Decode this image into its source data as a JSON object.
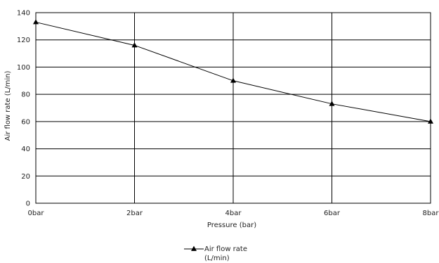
{
  "chart_data": {
    "type": "line",
    "title": "",
    "xlabel": "Pressure (bar)",
    "ylabel": "Air flow rate (L/min)",
    "categories": [
      "0bar",
      "2bar",
      "4bar",
      "6bar",
      "8bar"
    ],
    "ylim": [
      0,
      140
    ],
    "yticks": [
      0,
      20,
      40,
      60,
      80,
      100,
      120,
      140
    ],
    "grid": true,
    "legend_position": "bottom-center",
    "series": [
      {
        "name": "Air flow rate (L/min)",
        "legend_lines": [
          "Air flow rate",
          "(L/min)"
        ],
        "marker": "triangle",
        "color": "#000000",
        "values": [
          133,
          116,
          90,
          73,
          60
        ]
      }
    ]
  }
}
